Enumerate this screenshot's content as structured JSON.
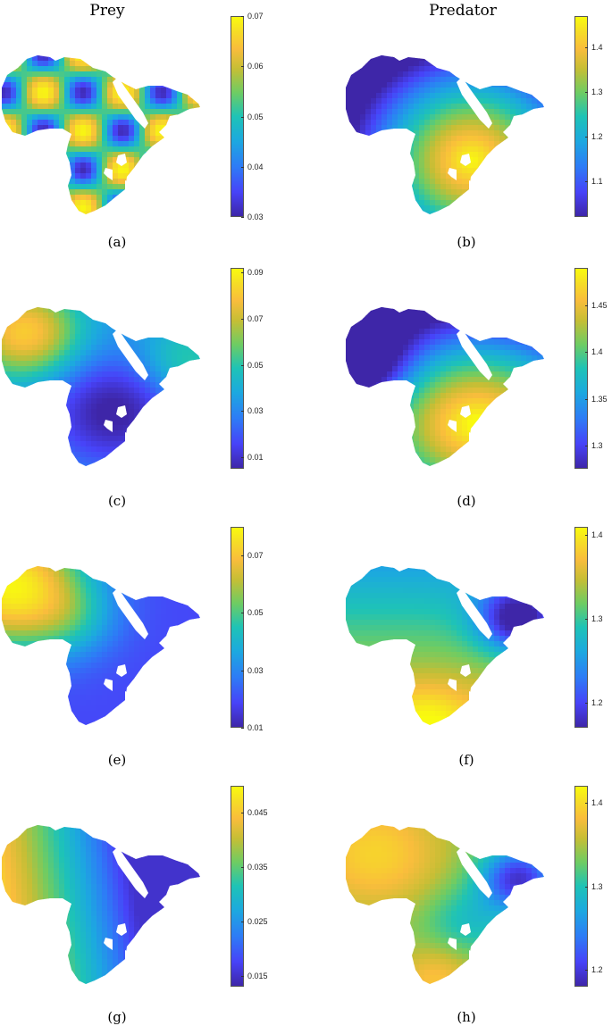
{
  "figure": {
    "columns": [
      "Prey",
      "Predator"
    ],
    "colormap": [
      "#3e26a8",
      "#4743f8",
      "#2d7cf6",
      "#1ca9df",
      "#1ec3b6",
      "#6ecc63",
      "#c6be35",
      "#f9bd3c",
      "#f6de25",
      "#f9fb0e"
    ],
    "panels": [
      {
        "caption": "(a)",
        "column": "Prey",
        "ticks": [
          "0.03",
          "0.04",
          "0.05",
          "0.06",
          "0.07"
        ],
        "tick_values": [
          0.03,
          0.04,
          0.05,
          0.06,
          0.07
        ],
        "range": [
          0.03,
          0.07
        ],
        "pattern": "spots"
      },
      {
        "caption": "(b)",
        "column": "Predator",
        "ticks": [
          "1.1",
          "1.2",
          "1.3",
          "1.4"
        ],
        "tick_values": [
          1.1,
          1.2,
          1.3,
          1.4
        ],
        "range": [
          1.02,
          1.47
        ],
        "pattern": "b"
      },
      {
        "caption": "(c)",
        "column": "Prey",
        "ticks": [
          "0.01",
          "0.03",
          "0.05",
          "0.07",
          "0.09"
        ],
        "tick_values": [
          0.01,
          0.03,
          0.05,
          0.07,
          0.09
        ],
        "range": [
          0.005,
          0.092
        ],
        "pattern": "c"
      },
      {
        "caption": "(d)",
        "column": "Predator",
        "ticks": [
          "1.3",
          "1.35",
          "1.4",
          "1.45"
        ],
        "tick_values": [
          1.3,
          1.35,
          1.4,
          1.45
        ],
        "range": [
          1.275,
          1.49
        ],
        "pattern": "d"
      },
      {
        "caption": "(e)",
        "column": "Prey",
        "ticks": [
          "0.01",
          "0.03",
          "0.05",
          "0.07"
        ],
        "tick_values": [
          0.01,
          0.03,
          0.05,
          0.07
        ],
        "range": [
          0.01,
          0.08
        ],
        "pattern": "e"
      },
      {
        "caption": "(f)",
        "column": "Predator",
        "ticks": [
          "1.2",
          "1.3",
          "1.4"
        ],
        "tick_values": [
          1.2,
          1.3,
          1.4
        ],
        "range": [
          1.17,
          1.41
        ],
        "pattern": "f"
      },
      {
        "caption": "(g)",
        "column": "Prey",
        "ticks": [
          "0.015",
          "0.025",
          "0.035",
          "0.045"
        ],
        "tick_values": [
          0.015,
          0.025,
          0.035,
          0.045
        ],
        "range": [
          0.013,
          0.05
        ],
        "pattern": "g"
      },
      {
        "caption": "(h)",
        "column": "Predator",
        "ticks": [
          "1.2",
          "1.3",
          "1.4"
        ],
        "tick_values": [
          1.2,
          1.3,
          1.4
        ],
        "range": [
          1.18,
          1.42
        ],
        "pattern": "h"
      }
    ]
  }
}
